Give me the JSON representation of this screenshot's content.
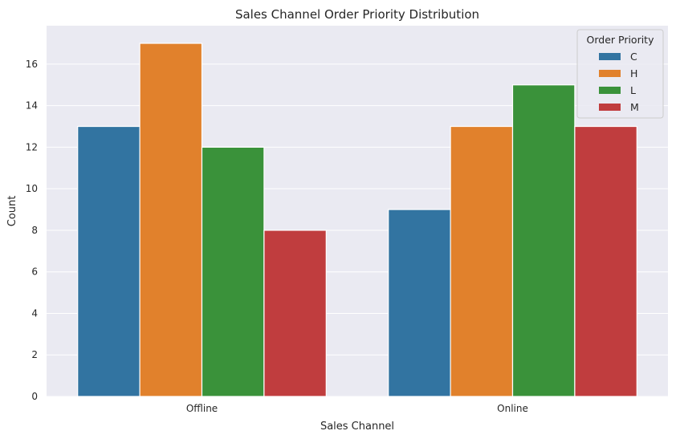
{
  "chart_data": {
    "type": "bar",
    "title": "Sales Channel Order Priority Distribution",
    "xlabel": "Sales Channel",
    "ylabel": "Count",
    "categories": [
      "Offline",
      "Online"
    ],
    "series": [
      {
        "name": "C",
        "color": "#3274a1",
        "values": [
          13,
          9
        ]
      },
      {
        "name": "H",
        "color": "#e1812c",
        "values": [
          17,
          13
        ]
      },
      {
        "name": "L",
        "color": "#3a923a",
        "values": [
          12,
          15
        ]
      },
      {
        "name": "M",
        "color": "#c03d3e",
        "values": [
          8,
          13
        ]
      }
    ],
    "ylim": [
      0,
      17.85
    ],
    "yticks": [
      "0",
      "2",
      "4",
      "6",
      "8",
      "10",
      "12",
      "14",
      "16"
    ],
    "grid": true,
    "legend": {
      "title": "Order Priority",
      "position": "top-right"
    },
    "background_color": "#eaeaf2"
  }
}
